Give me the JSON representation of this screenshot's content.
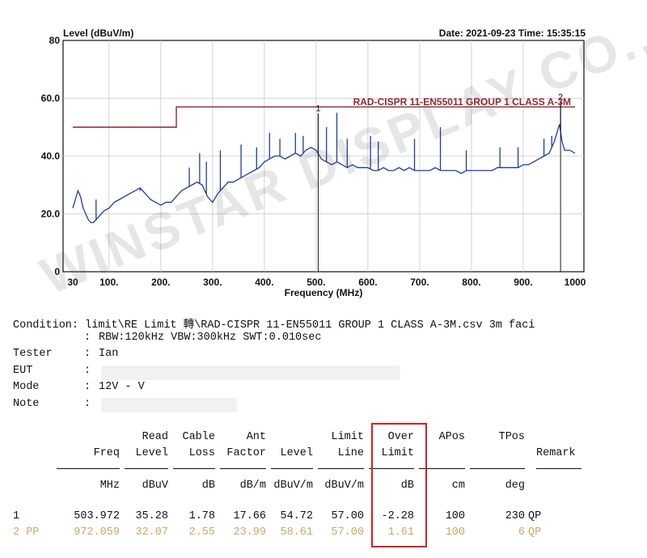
{
  "header": {
    "ylabel": "Level (dBuV/m)",
    "date_time": "Date: 2021-09-23  Time: 15:35:15"
  },
  "chart_data": {
    "type": "line",
    "title": "",
    "xlabel": "Frequency (MHz)",
    "ylabel": "Level (dBuV/m)",
    "xlim": [
      30,
      1000
    ],
    "ylim": [
      0,
      80
    ],
    "x_ticks": [
      {
        "value": 30,
        "label": "30"
      },
      {
        "value": 100,
        "label": "100."
      },
      {
        "value": 200,
        "label": "200."
      },
      {
        "value": 300,
        "label": "300."
      },
      {
        "value": 400,
        "label": "400."
      },
      {
        "value": 500,
        "label": "500."
      },
      {
        "value": 600,
        "label": "600."
      },
      {
        "value": 700,
        "label": "700."
      },
      {
        "value": 800,
        "label": "800."
      },
      {
        "value": 900,
        "label": "900."
      },
      {
        "value": 1000,
        "label": "1000"
      }
    ],
    "y_ticks": [
      {
        "value": 0,
        "label": "0"
      },
      {
        "value": 20,
        "label": "20.0"
      },
      {
        "value": 40,
        "label": "40.0"
      },
      {
        "value": 60,
        "label": "60.0"
      },
      {
        "value": 80,
        "label": "80"
      }
    ],
    "limit_line": {
      "name": "RAD-CISPR 11-EN55011 GROUP 1 CLASS A-3M",
      "color": "#8b2a32",
      "points": [
        [
          30,
          50
        ],
        [
          230,
          50
        ],
        [
          230,
          57
        ],
        [
          1000,
          57
        ]
      ]
    },
    "series": [
      {
        "name": "Measured level",
        "color": "#1f3e9c",
        "points": [
          [
            30,
            22
          ],
          [
            35,
            25
          ],
          [
            40,
            28
          ],
          [
            45,
            26
          ],
          [
            50,
            22
          ],
          [
            55,
            20
          ],
          [
            60,
            18
          ],
          [
            65,
            17
          ],
          [
            70,
            17
          ],
          [
            80,
            19
          ],
          [
            90,
            21
          ],
          [
            100,
            22
          ],
          [
            110,
            24
          ],
          [
            120,
            25
          ],
          [
            130,
            26
          ],
          [
            140,
            27
          ],
          [
            150,
            28
          ],
          [
            160,
            29
          ],
          [
            170,
            27
          ],
          [
            180,
            25
          ],
          [
            190,
            24
          ],
          [
            200,
            23
          ],
          [
            210,
            24
          ],
          [
            220,
            24
          ],
          [
            230,
            26
          ],
          [
            240,
            28
          ],
          [
            250,
            29
          ],
          [
            260,
            30
          ],
          [
            270,
            31
          ],
          [
            280,
            30
          ],
          [
            290,
            26
          ],
          [
            300,
            24
          ],
          [
            310,
            27
          ],
          [
            320,
            29
          ],
          [
            330,
            31
          ],
          [
            340,
            31
          ],
          [
            350,
            32
          ],
          [
            360,
            33
          ],
          [
            370,
            34
          ],
          [
            380,
            35
          ],
          [
            390,
            36
          ],
          [
            400,
            38
          ],
          [
            410,
            39
          ],
          [
            420,
            40
          ],
          [
            430,
            40
          ],
          [
            440,
            39
          ],
          [
            450,
            40
          ],
          [
            460,
            41
          ],
          [
            470,
            40
          ],
          [
            480,
            42
          ],
          [
            490,
            43
          ],
          [
            500,
            42
          ],
          [
            510,
            39
          ],
          [
            520,
            38
          ],
          [
            530,
            37
          ],
          [
            540,
            38
          ],
          [
            550,
            37
          ],
          [
            560,
            36
          ],
          [
            570,
            37
          ],
          [
            580,
            36
          ],
          [
            590,
            36
          ],
          [
            600,
            36
          ],
          [
            610,
            35
          ],
          [
            620,
            35
          ],
          [
            630,
            36
          ],
          [
            640,
            35
          ],
          [
            650,
            35
          ],
          [
            660,
            36
          ],
          [
            670,
            35
          ],
          [
            680,
            36
          ],
          [
            690,
            35
          ],
          [
            700,
            35
          ],
          [
            710,
            35
          ],
          [
            720,
            35
          ],
          [
            730,
            36
          ],
          [
            740,
            35
          ],
          [
            750,
            35
          ],
          [
            760,
            35
          ],
          [
            770,
            35
          ],
          [
            780,
            34
          ],
          [
            790,
            35
          ],
          [
            800,
            35
          ],
          [
            810,
            35
          ],
          [
            820,
            35
          ],
          [
            830,
            35
          ],
          [
            840,
            35
          ],
          [
            850,
            36
          ],
          [
            860,
            36
          ],
          [
            870,
            36
          ],
          [
            880,
            36
          ],
          [
            890,
            36
          ],
          [
            900,
            37
          ],
          [
            910,
            37
          ],
          [
            920,
            38
          ],
          [
            930,
            39
          ],
          [
            940,
            40
          ],
          [
            950,
            41
          ],
          [
            960,
            45
          ],
          [
            970,
            51
          ],
          [
            975,
            45
          ],
          [
            980,
            42
          ],
          [
            990,
            42
          ],
          [
            1000,
            41
          ]
        ]
      }
    ],
    "spikes": [
      {
        "x": 75,
        "y": 25
      },
      {
        "x": 160,
        "y": 28
      },
      {
        "x": 255,
        "y": 36
      },
      {
        "x": 275,
        "y": 41
      },
      {
        "x": 288,
        "y": 38
      },
      {
        "x": 315,
        "y": 42
      },
      {
        "x": 355,
        "y": 44
      },
      {
        "x": 385,
        "y": 43
      },
      {
        "x": 410,
        "y": 48
      },
      {
        "x": 430,
        "y": 46
      },
      {
        "x": 460,
        "y": 48
      },
      {
        "x": 475,
        "y": 47
      },
      {
        "x": 503.972,
        "y": 54.72
      },
      {
        "x": 520,
        "y": 50
      },
      {
        "x": 540,
        "y": 55
      },
      {
        "x": 560,
        "y": 46
      },
      {
        "x": 605,
        "y": 47
      },
      {
        "x": 620,
        "y": 45
      },
      {
        "x": 690,
        "y": 46
      },
      {
        "x": 740,
        "y": 50
      },
      {
        "x": 790,
        "y": 42
      },
      {
        "x": 855,
        "y": 43
      },
      {
        "x": 890,
        "y": 43
      },
      {
        "x": 940,
        "y": 46
      },
      {
        "x": 955,
        "y": 47
      },
      {
        "x": 972.059,
        "y": 58.61
      }
    ],
    "markers": [
      {
        "label": "1",
        "x": 503.972,
        "y": 54.72
      },
      {
        "label": "2",
        "x": 972.059,
        "y": 58.61
      }
    ]
  },
  "condition": {
    "condition_label": "Condition",
    "condition_line1": "limit\\RE Limit 轉\\RAD-CISPR 11-EN55011 GROUP 1 CLASS A-3M.csv 3m faci",
    "condition_line2": "RBW:120kHz VBW:300kHz SWT:0.010sec",
    "tester_label": "Tester",
    "tester_value": "Ian",
    "eut_label": "EUT",
    "eut_value": "",
    "mode_label": "Mode",
    "mode_value": "12V - V",
    "note_label": "Note",
    "note_value": ""
  },
  "table": {
    "headers_top": [
      "",
      "",
      "Read",
      "Cable",
      "Ant",
      "",
      "Limit",
      "Over",
      "APos",
      "TPos",
      ""
    ],
    "headers_bottom": [
      "",
      "Freq",
      "Level",
      "Loss",
      "Factor",
      "Level",
      "Line",
      "Limit",
      "",
      "",
      "Remark"
    ],
    "units": [
      "",
      "MHz",
      "dBuV",
      "dB",
      "dB/m",
      "dBuV/m",
      "dBuV/m",
      "dB",
      "cm",
      "deg",
      ""
    ],
    "rows": [
      [
        "1",
        "503.972",
        "35.28",
        "1.78",
        "17.66",
        "54.72",
        "57.00",
        "-2.28",
        "100",
        "230",
        "QP"
      ],
      [
        "2 PP",
        "972.059",
        "32.07",
        "2.55",
        "23.99",
        "58.61",
        "57.00",
        "1.61",
        "100",
        "6",
        "QP"
      ]
    ]
  },
  "watermark": "WINSTAR DISPLAY CO., LTD."
}
